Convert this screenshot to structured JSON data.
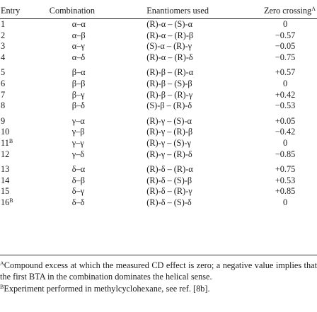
{
  "header": {
    "entry": "Entry",
    "combination": "Combination",
    "enantiomers": "Enantiomers used",
    "zero": "Zero crossing",
    "zero_sup": "A"
  },
  "rows": [
    {
      "entry": "1",
      "sup": "",
      "comb": "α–α",
      "enan": "(R)-α – (S)-α",
      "zero": "0"
    },
    {
      "entry": "2",
      "sup": "",
      "comb": "α–β",
      "enan": "(R)-α – (R)-β",
      "zero": "−0.57"
    },
    {
      "entry": "3",
      "sup": "",
      "comb": "α–γ",
      "enan": "(S)-α – (R)-γ",
      "zero": "−0.05"
    },
    {
      "entry": "4",
      "sup": "",
      "comb": "α–δ",
      "enan": "(R)-α – (R)-δ",
      "zero": "−0.75"
    },
    {
      "entry": "5",
      "sup": "",
      "comb": "β–α",
      "enan": "(R)-β – (R)-α",
      "zero": "+0.57"
    },
    {
      "entry": "6",
      "sup": "",
      "comb": "β–β",
      "enan": "(R)-β – (S)-β",
      "zero": "0"
    },
    {
      "entry": "7",
      "sup": "",
      "comb": "β–γ",
      "enan": "(R)-β – (R)-γ",
      "zero": "+0.42"
    },
    {
      "entry": "8",
      "sup": "",
      "comb": "β–δ",
      "enan": "(S)-β – (R)-δ",
      "zero": "−0.53"
    },
    {
      "entry": "9",
      "sup": "",
      "comb": "γ–α",
      "enan": "(R)-γ – (S)-α",
      "zero": "+0.05"
    },
    {
      "entry": "10",
      "sup": "",
      "comb": "γ–β",
      "enan": "(R)-γ – (R)-β",
      "zero": "−0.42"
    },
    {
      "entry": "11",
      "sup": "B",
      "comb": "γ–γ",
      "enan": "(R)-γ – (S)-γ",
      "zero": "0"
    },
    {
      "entry": "12",
      "sup": "",
      "comb": "γ–δ",
      "enan": "(R)-γ – (R)-δ",
      "zero": "−0.85"
    },
    {
      "entry": "13",
      "sup": "",
      "comb": "δ–α",
      "enan": "(R)-δ – (R)-α",
      "zero": "+0.75"
    },
    {
      "entry": "14",
      "sup": "",
      "comb": "δ–β",
      "enan": "(R)-δ – (S)-β",
      "zero": "+0.53"
    },
    {
      "entry": "15",
      "sup": "",
      "comb": "δ–γ",
      "enan": "(R)-δ – (R)-γ",
      "zero": "+0.85"
    },
    {
      "entry": "16",
      "sup": "B",
      "comb": "δ–δ",
      "enan": "(R)-δ – (S)-δ",
      "zero": "0"
    }
  ],
  "footnotes": [
    {
      "mark": "A",
      "text": "Compound excess at which the measured CD effect is zero; a negative value implies that the first BTA in the combination dominates the helical sense."
    },
    {
      "mark": "B",
      "text": "Experiment performed in methylcyclohexane, see ref. [8b]."
    }
  ]
}
